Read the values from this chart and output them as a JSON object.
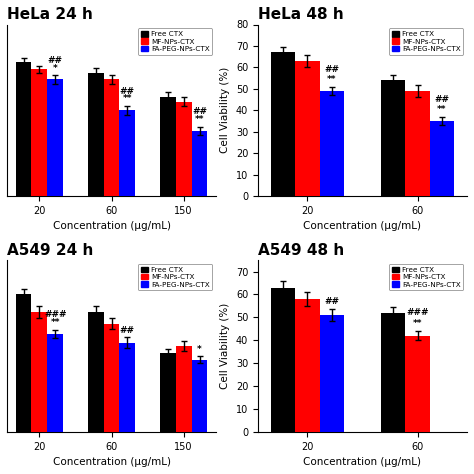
{
  "titles": [
    "HeLa 24 h",
    "HeLa 48 h",
    "A549 24 h",
    "A549 48 h"
  ],
  "colors": [
    "black",
    "red",
    "blue"
  ],
  "legend_labels": [
    "Free CTX",
    "MF-NPs-CTX",
    "FA-PEG-NPs-CTX"
  ],
  "bar_width": 0.22,
  "subplots": [
    {
      "n_conc": 3,
      "conc_labels": [
        "20",
        "60",
        "150"
      ],
      "values": [
        [
          78,
          72,
          58
        ],
        [
          74,
          68,
          55
        ],
        [
          68,
          50,
          38
        ]
      ],
      "errors": [
        [
          2.5,
          2.5,
          2.5
        ],
        [
          2.0,
          2.5,
          2.5
        ],
        [
          2.5,
          2.5,
          2.5
        ]
      ],
      "ylim": [
        0,
        100
      ],
      "yticks": [],
      "show_ylabel": false,
      "show_yticks": false,
      "annots": [
        [
          0,
          2,
          [
            "*",
            "##"
          ]
        ],
        [
          1,
          2,
          [
            "**",
            "##"
          ]
        ],
        [
          2,
          2,
          [
            "**",
            "##"
          ]
        ]
      ]
    },
    {
      "n_conc": 2,
      "conc_labels": [
        "20",
        "60"
      ],
      "values": [
        [
          67,
          54
        ],
        [
          63,
          49
        ],
        [
          49,
          35
        ]
      ],
      "errors": [
        [
          2.5,
          2.5
        ],
        [
          3.0,
          3.0
        ],
        [
          2.0,
          2.0
        ]
      ],
      "ylim": [
        0,
        80
      ],
      "yticks": [
        0,
        10,
        20,
        30,
        40,
        50,
        60,
        70,
        80
      ],
      "show_ylabel": true,
      "show_yticks": true,
      "annots": [
        [
          0,
          2,
          [
            "**",
            "##"
          ]
        ],
        [
          1,
          2,
          [
            "**",
            "##"
          ]
        ]
      ]
    },
    {
      "n_conc": 3,
      "conc_labels": [
        "20",
        "60",
        "150"
      ],
      "values": [
        [
          80,
          70,
          46
        ],
        [
          70,
          63,
          50
        ],
        [
          57,
          52,
          42
        ]
      ],
      "errors": [
        [
          3.0,
          3.0,
          2.5
        ],
        [
          3.5,
          3.0,
          3.0
        ],
        [
          2.5,
          3.0,
          2.0
        ]
      ],
      "ylim": [
        0,
        100
      ],
      "yticks": [],
      "show_ylabel": false,
      "show_yticks": false,
      "annots": [
        [
          0,
          2,
          [
            "**",
            "###"
          ]
        ],
        [
          1,
          2,
          [
            "##"
          ]
        ],
        [
          2,
          2,
          [
            "*"
          ]
        ]
      ]
    },
    {
      "n_conc": 2,
      "conc_labels": [
        "20",
        "60"
      ],
      "values": [
        [
          63,
          52
        ],
        [
          58,
          42
        ],
        [
          51,
          null
        ]
      ],
      "errors": [
        [
          3.0,
          2.5
        ],
        [
          3.0,
          2.0
        ],
        [
          2.5,
          null
        ]
      ],
      "ylim": [
        0,
        75
      ],
      "yticks": [
        0,
        10,
        20,
        30,
        40,
        50,
        60,
        70
      ],
      "show_ylabel": true,
      "show_yticks": true,
      "annots": [
        [
          0,
          2,
          [
            "##"
          ]
        ],
        [
          1,
          1,
          [
            "**",
            "###"
          ]
        ]
      ]
    }
  ]
}
